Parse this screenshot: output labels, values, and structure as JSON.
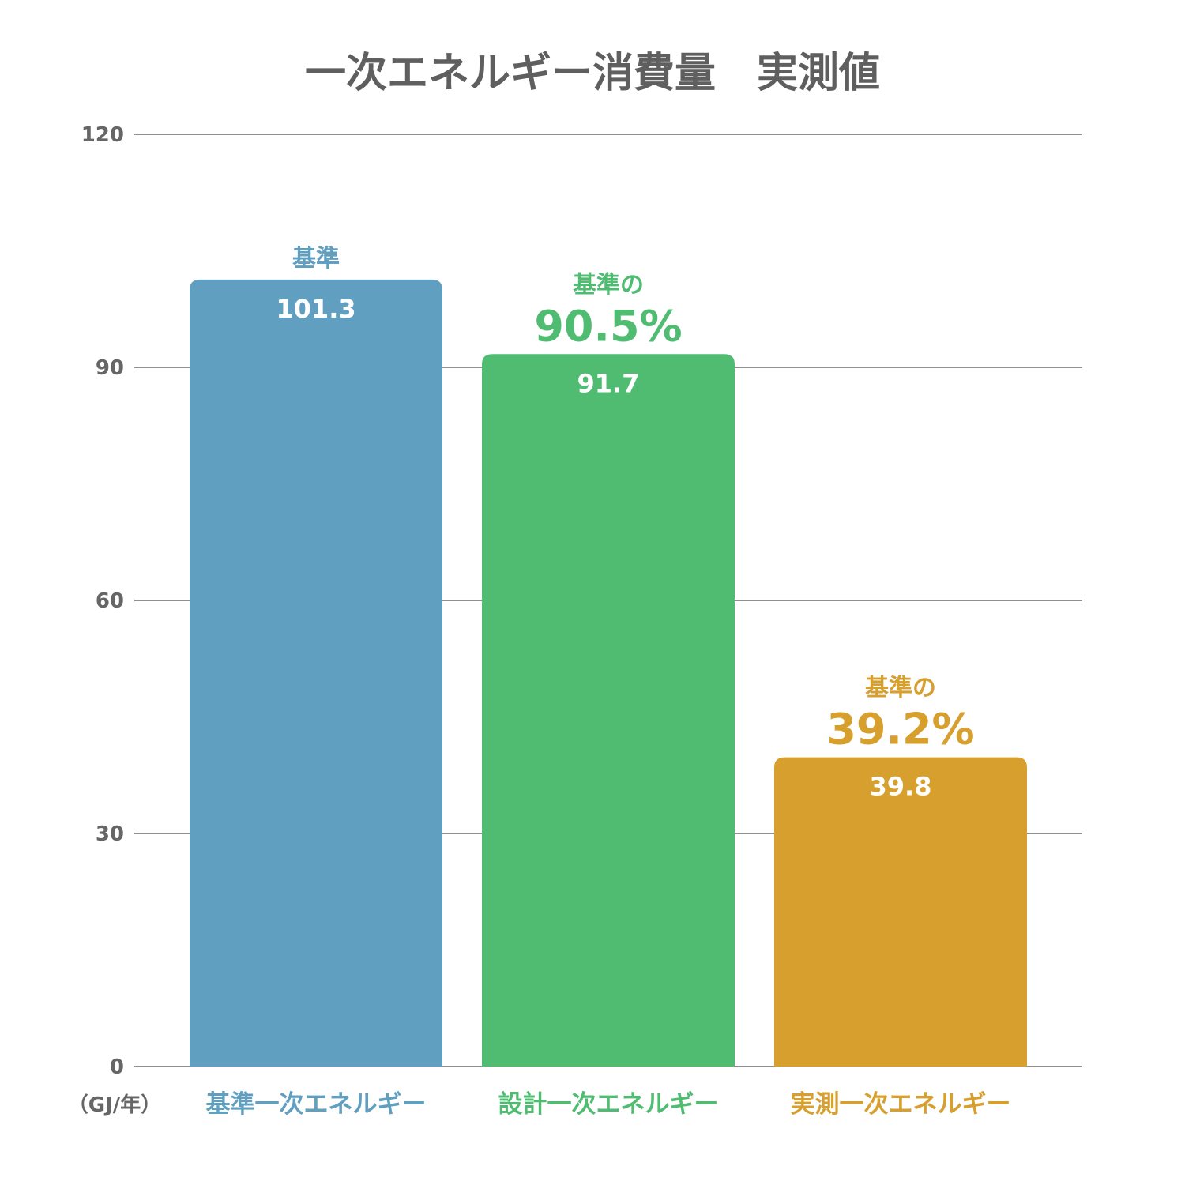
{
  "chart_data": {
    "type": "bar",
    "title": "一次エネルギー消費量　実測値",
    "unit_label": "（GJ/年）",
    "ylim": [
      0,
      120
    ],
    "yticks": [
      0,
      30,
      60,
      90,
      120
    ],
    "grid": true,
    "categories": [
      "基準一次エネルギー",
      "設計一次エネルギー",
      "実測一次エネルギー"
    ],
    "values": [
      101.3,
      91.7,
      39.8
    ],
    "value_labels": [
      "101.3",
      "91.7",
      "39.8"
    ],
    "colors": [
      "#619fc1",
      "#4fbc72",
      "#d69f2e"
    ],
    "annotations": [
      {
        "small": "基準",
        "big": ""
      },
      {
        "small": "基準の",
        "big": "90.5%"
      },
      {
        "small": "基準の",
        "big": "39.2%"
      }
    ]
  }
}
